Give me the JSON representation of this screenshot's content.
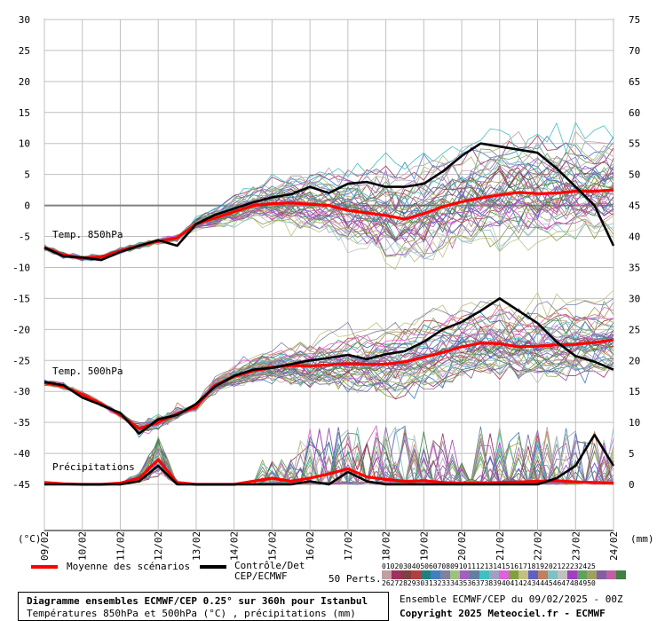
{
  "chart_data": {
    "type": "line",
    "x_ticks": [
      "09/02",
      "10/02",
      "11/02",
      "12/02",
      "13/02",
      "14/02",
      "15/02",
      "16/02",
      "17/02",
      "18/02",
      "19/02",
      "20/02",
      "21/02",
      "22/02",
      "23/02",
      "24/02"
    ],
    "left_axis_label": "(°C)",
    "right_axis_label": "(mm)",
    "left_ticks": [
      "30",
      "25",
      "20",
      "15",
      "10",
      "5",
      "0",
      "-5",
      "-10",
      "-15",
      "-20",
      "-25",
      "-30",
      "-35",
      "-40",
      "-45"
    ],
    "right_ticks": [
      "75",
      "70",
      "65",
      "60",
      "55",
      "50",
      "45",
      "40",
      "35",
      "30",
      "25",
      "20",
      "15",
      "10",
      "5",
      "0"
    ],
    "panel_labels": {
      "t850": "Temp. 850hPa",
      "t500": "Temp. 500hPa",
      "precip": "Précipitations"
    },
    "x_days": [
      0,
      0.5,
      1,
      1.5,
      2,
      2.5,
      3,
      3.5,
      4,
      4.5,
      5,
      5.5,
      6,
      6.5,
      7,
      7.5,
      8,
      8.5,
      9,
      9.5,
      10,
      10.5,
      11,
      11.5,
      12,
      12.5,
      13,
      13.5,
      14,
      14.5,
      15
    ],
    "series": [
      {
        "name": "Moyenne des scénarios",
        "panel": "t850",
        "values": [
          -6.8,
          -8,
          -8.5,
          -8.3,
          -7.3,
          -6.5,
          -5.8,
          -5.2,
          -3,
          -2,
          -1,
          0,
          0.3,
          0.4,
          0.2,
          0,
          -0.8,
          -1.2,
          -1.6,
          -2.2,
          -1.3,
          -0.2,
          0.6,
          1.2,
          1.7,
          2.1,
          1.9,
          2,
          2.3,
          2.3,
          2.5
        ]
      },
      {
        "name": "Contrôle/Det CEP/ECMWF",
        "panel": "t850",
        "values": [
          -6.8,
          -8.2,
          -8.4,
          -8.8,
          -7.5,
          -6.5,
          -5.6,
          -6.5,
          -3,
          -1.5,
          -0.5,
          0.5,
          1.3,
          1.8,
          3,
          2,
          3.5,
          3.8,
          3,
          3,
          3.5,
          5.5,
          8,
          10,
          9.5,
          9,
          8.5,
          6,
          3,
          0,
          -6.5
        ]
      },
      {
        "name": "Moyenne des scénarios",
        "panel": "t500",
        "values": [
          -28.6,
          -29.2,
          -30.5,
          -32,
          -33.8,
          -36,
          -35,
          -33.6,
          -32.5,
          -29,
          -27.6,
          -26.7,
          -26.1,
          -25.8,
          -25.9,
          -25.7,
          -25.5,
          -25.6,
          -25.6,
          -25.2,
          -24.5,
          -23.7,
          -22.8,
          -22.2,
          -22.3,
          -22.8,
          -22.7,
          -22.5,
          -22.4,
          -22.1,
          -21.7
        ]
      },
      {
        "name": "Contrôle/Det CEP/ECMWF",
        "panel": "t500",
        "values": [
          -28.5,
          -29,
          -31,
          -32.2,
          -33.5,
          -36.8,
          -34.5,
          -33.8,
          -32,
          -29.2,
          -27.5,
          -26.5,
          -26.2,
          -25.6,
          -25,
          -24.6,
          -24.1,
          -24.8,
          -24,
          -23.5,
          -22,
          -20,
          -18.8,
          -17,
          -15,
          -17,
          -19,
          -22,
          -24.3,
          -25.2,
          -26.5
        ]
      },
      {
        "name": "Moyenne des scénarios",
        "panel": "precip",
        "values": [
          0.3,
          0.1,
          0,
          0,
          0.2,
          1,
          4,
          0.3,
          0,
          0,
          0,
          0.5,
          1,
          0.5,
          1,
          1.7,
          2.5,
          1.2,
          0.8,
          0.5,
          0.6,
          0.3,
          0.2,
          0.2,
          0.3,
          0.4,
          0.5,
          0.6,
          0.4,
          0.3,
          0.2
        ]
      },
      {
        "name": "Contrôle/Det CEP/ECMWF",
        "panel": "precip",
        "values": [
          0,
          0,
          0,
          0,
          0,
          0.5,
          3,
          0,
          0,
          0,
          0,
          0,
          0,
          0,
          0.5,
          0,
          2,
          0.5,
          0,
          0,
          0,
          0,
          0,
          0,
          0,
          0,
          0,
          1,
          3,
          8,
          3
        ]
      }
    ],
    "legend": {
      "mean_label": "Moyenne des scénarios",
      "control_label_1": "Contrôle/Det",
      "control_label_2": "CEP/ECMWF",
      "perts_label": "50 Perts.",
      "perts_nums_1": "01020304050607080910111213141516171819202122232425",
      "perts_nums_2": "26272829303132333435363738394041424344454647484950",
      "swatch_colors": [
        "#c0a0a0",
        "#a03060",
        "#804040",
        "#b04040",
        "#208080",
        "#4080c0",
        "#8080a0",
        "#a0c080",
        "#a060c0",
        "#6080a0",
        "#40c0c0",
        "#a0a0c0",
        "#e060e0",
        "#80a040",
        "#c0c080",
        "#6060c0",
        "#c08060",
        "#80c0c0",
        "#c0c0c0",
        "#a040c0",
        "#60a060",
        "#a0a060",
        "#8060a0",
        "#c060a0",
        "#408040"
      ]
    },
    "colors": {
      "mean": "#ff0000",
      "control": "#000000",
      "grid": "#c0c0c0",
      "zero_line": "#808080"
    }
  },
  "footer": {
    "title": "Diagramme ensembles ECMWF/CEP 0.25° sur 360h pour Istanbul",
    "subtitle": "Températures 850hPa et 500hPa (°C) , précipitations (mm)",
    "ensemble_run": "Ensemble ECMWF/CEP du 09/02/2025 - 00Z",
    "copyright": "Copyright 2025 Meteociel.fr - ECMWF"
  }
}
